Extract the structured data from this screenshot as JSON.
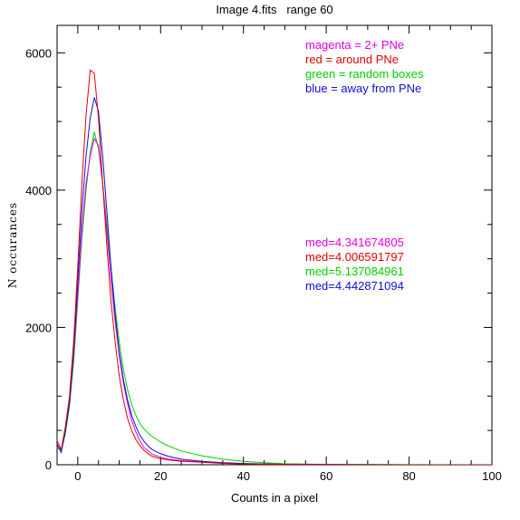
{
  "chart_data": {
    "type": "line",
    "title": "Image 4.fits   range 60",
    "xlabel": "Counts in a pixel",
    "ylabel": "N occurances",
    "xlim": [
      -5,
      100
    ],
    "ylim": [
      0,
      6400
    ],
    "xticks": [
      0,
      20,
      40,
      60,
      80,
      100
    ],
    "xtick_labels": [
      "0",
      "20",
      "40",
      "60",
      "80",
      "100"
    ],
    "yticks": [
      0,
      2000,
      4000,
      6000
    ],
    "ytick_labels": [
      "0",
      "2000",
      "4000",
      "6000"
    ],
    "grid": false,
    "legend_position": "top-right",
    "legend": [
      {
        "label": "magenta = 2+ PNe",
        "color": "#e000e0"
      },
      {
        "label": "red = around PNe",
        "color": "#e00000"
      },
      {
        "label": "green = random boxes",
        "color": "#00d000"
      },
      {
        "label": "blue = away from PNe",
        "color": "#1010d0"
      }
    ],
    "medians": [
      {
        "label": "med=4.341674805",
        "color": "#e000e0"
      },
      {
        "label": "med=4.006591797",
        "color": "#e00000"
      },
      {
        "label": "med=5.137084961",
        "color": "#00d000"
      },
      {
        "label": "med=4.442871094",
        "color": "#1010d0"
      }
    ],
    "series": [
      {
        "color": "#e000e0",
        "x": [
          -5,
          -4,
          -3,
          -2,
          -1,
          0,
          1,
          2,
          3,
          4,
          5,
          6,
          7,
          8,
          9,
          10,
          11,
          12,
          13,
          14,
          15,
          16,
          17,
          18,
          20,
          22,
          25,
          30,
          35,
          40,
          50,
          60,
          80,
          100
        ],
        "y": [
          300,
          200,
          500,
          900,
          1600,
          2500,
          3400,
          4100,
          4500,
          4750,
          4650,
          4100,
          3400,
          2700,
          2100,
          1600,
          1200,
          900,
          650,
          480,
          350,
          250,
          200,
          150,
          110,
          80,
          60,
          40,
          25,
          15,
          5,
          2,
          0,
          0
        ]
      },
      {
        "color": "#e00000",
        "x": [
          -5,
          -4,
          -3,
          -2,
          -1,
          0,
          1,
          2,
          3,
          4,
          5,
          6,
          7,
          8,
          9,
          10,
          11,
          12,
          13,
          14,
          15,
          16,
          17,
          18,
          20,
          22,
          25,
          30,
          35,
          40,
          50,
          60,
          80,
          100
        ],
        "y": [
          350,
          220,
          550,
          1000,
          1800,
          2900,
          4100,
          5100,
          5750,
          5700,
          5050,
          4100,
          3200,
          2400,
          1800,
          1300,
          950,
          680,
          500,
          370,
          280,
          210,
          160,
          120,
          90,
          70,
          50,
          35,
          20,
          12,
          5,
          2,
          0,
          0
        ]
      },
      {
        "color": "#00d000",
        "x": [
          -5,
          -4,
          -3,
          -2,
          -1,
          0,
          1,
          2,
          3,
          4,
          5,
          6,
          7,
          8,
          9,
          10,
          11,
          12,
          13,
          14,
          15,
          16,
          17,
          18,
          20,
          22,
          25,
          30,
          35,
          40,
          45,
          50,
          60,
          80,
          100
        ],
        "y": [
          250,
          200,
          450,
          850,
          1500,
          2400,
          3300,
          4000,
          4550,
          4850,
          4600,
          4100,
          3500,
          2900,
          2300,
          1800,
          1400,
          1100,
          880,
          720,
          600,
          520,
          460,
          410,
          330,
          270,
          200,
          130,
          80,
          50,
          30,
          15,
          5,
          1,
          0
        ]
      },
      {
        "color": "#1010d0",
        "x": [
          -5,
          -4,
          -3,
          -2,
          -1,
          0,
          1,
          2,
          3,
          4,
          5,
          6,
          7,
          8,
          9,
          10,
          11,
          12,
          13,
          14,
          15,
          16,
          17,
          18,
          20,
          22,
          25,
          30,
          35,
          40,
          50,
          60,
          80,
          100
        ],
        "y": [
          300,
          180,
          480,
          900,
          1650,
          2700,
          3700,
          4500,
          5050,
          5350,
          5150,
          4500,
          3700,
          2900,
          2200,
          1650,
          1250,
          950,
          720,
          560,
          430,
          340,
          270,
          220,
          160,
          120,
          80,
          50,
          30,
          18,
          6,
          2,
          0,
          0
        ]
      }
    ]
  }
}
